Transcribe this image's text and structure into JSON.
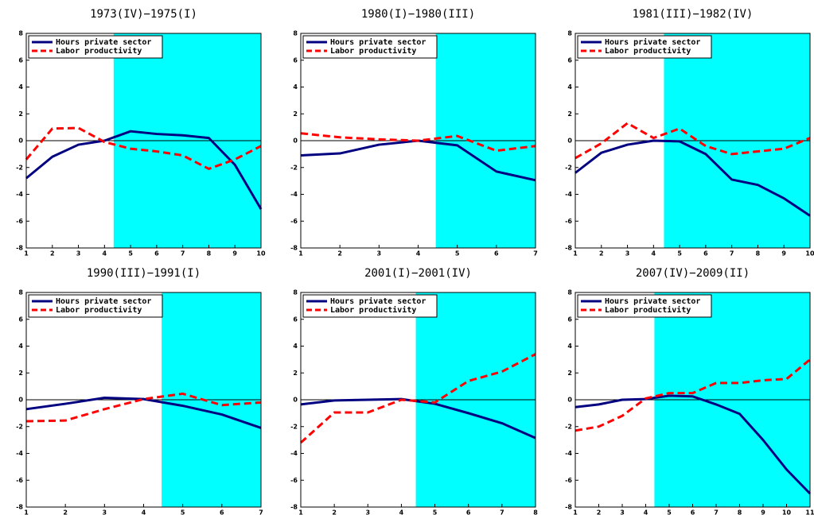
{
  "chart_data": [
    {
      "type": "line",
      "title": "1973(IV)−1975(I)",
      "x": [
        1,
        2,
        3,
        4,
        5,
        6,
        7,
        8,
        9,
        10
      ],
      "xlim": [
        1,
        10
      ],
      "xticks": [
        1,
        2,
        3,
        4,
        5,
        6,
        7,
        8,
        9,
        10
      ],
      "ylim": [
        -8,
        8
      ],
      "yticks": [
        -8,
        -6,
        -4,
        -2,
        0,
        2,
        4,
        6,
        8
      ],
      "shade": {
        "from": 4.35,
        "to": 10,
        "color": "#00ffff"
      },
      "legend": "upper-left",
      "series": [
        {
          "name": "Hours private sector",
          "color": "#000080",
          "dashed": false,
          "values": [
            -2.8,
            -1.2,
            -0.3,
            0,
            0.7,
            0.5,
            0.4,
            0.2,
            -1.8,
            -5.1
          ]
        },
        {
          "name": "Labor productivity",
          "color": "#ff0000",
          "dashed": true,
          "values": [
            -1.4,
            0.9,
            0.95,
            -0.1,
            -0.6,
            -0.8,
            -1.1,
            -2.1,
            -1.4,
            -0.4
          ]
        }
      ]
    },
    {
      "type": "line",
      "title": "1980(I)−1980(III)",
      "x": [
        1,
        2,
        3,
        4,
        5,
        6,
        7
      ],
      "xlim": [
        1,
        7
      ],
      "xticks": [
        1,
        2,
        3,
        4,
        5,
        6,
        7
      ],
      "ylim": [
        -8,
        8
      ],
      "yticks": [
        -8,
        -6,
        -4,
        -2,
        0,
        2,
        4,
        6,
        8
      ],
      "shade": {
        "from": 4.45,
        "to": 7,
        "color": "#00ffff"
      },
      "legend": "upper-left",
      "series": [
        {
          "name": "Hours private sector",
          "color": "#000080",
          "dashed": false,
          "values": [
            -1.1,
            -0.95,
            -0.3,
            0,
            -0.35,
            -2.3,
            -2.95
          ]
        },
        {
          "name": "Labor productivity",
          "color": "#ff0000",
          "dashed": true,
          "values": [
            0.55,
            0.25,
            0.1,
            0,
            0.35,
            -0.75,
            -0.4
          ]
        }
      ]
    },
    {
      "type": "line",
      "title": "1981(III)−1982(IV)",
      "x": [
        1,
        2,
        3,
        4,
        5,
        6,
        7,
        8,
        9,
        10
      ],
      "xlim": [
        1,
        10
      ],
      "xticks": [
        1,
        2,
        3,
        4,
        5,
        6,
        7,
        8,
        9,
        10
      ],
      "ylim": [
        -8,
        8
      ],
      "yticks": [
        -8,
        -6,
        -4,
        -2,
        0,
        2,
        4,
        6,
        8
      ],
      "shade": {
        "from": 4.4,
        "to": 10,
        "color": "#00ffff"
      },
      "legend": "upper-left",
      "series": [
        {
          "name": "Hours private sector",
          "color": "#000080",
          "dashed": false,
          "values": [
            -2.4,
            -0.9,
            -0.3,
            0,
            -0.05,
            -1.0,
            -2.9,
            -3.3,
            -4.3,
            -5.6
          ]
        },
        {
          "name": "Labor productivity",
          "color": "#ff0000",
          "dashed": true,
          "values": [
            -1.3,
            -0.2,
            1.3,
            0.2,
            0.9,
            -0.4,
            -1.0,
            -0.8,
            -0.6,
            0.2
          ]
        }
      ]
    },
    {
      "type": "line",
      "title": "1990(III)−1991(I)",
      "x": [
        1,
        2,
        3,
        4,
        5,
        6,
        7
      ],
      "xlim": [
        1,
        7
      ],
      "xticks": [
        1,
        2,
        3,
        4,
        5,
        6,
        7
      ],
      "ylim": [
        -8,
        8
      ],
      "yticks": [
        -8,
        -6,
        -4,
        -2,
        0,
        2,
        4,
        6,
        8
      ],
      "shade": {
        "from": 4.46,
        "to": 7,
        "color": "#00ffff"
      },
      "legend": "upper-left",
      "series": [
        {
          "name": "Hours private sector",
          "color": "#000080",
          "dashed": false,
          "values": [
            -0.7,
            -0.3,
            0.15,
            0.05,
            -0.45,
            -1.1,
            -2.1
          ]
        },
        {
          "name": "Labor productivity",
          "color": "#ff0000",
          "dashed": true,
          "values": [
            -1.6,
            -1.55,
            -0.7,
            0.05,
            0.45,
            -0.4,
            -0.2
          ]
        }
      ]
    },
    {
      "type": "line",
      "title": "2001(I)−2001(IV)",
      "x": [
        1,
        2,
        3,
        4,
        5,
        6,
        7,
        8
      ],
      "xlim": [
        1,
        8
      ],
      "xticks": [
        1,
        2,
        3,
        4,
        5,
        6,
        7,
        8
      ],
      "ylim": [
        -8,
        8
      ],
      "yticks": [
        -8,
        -6,
        -4,
        -2,
        0,
        2,
        4,
        6,
        8
      ],
      "shade": {
        "from": 4.43,
        "to": 8,
        "color": "#00ffff"
      },
      "legend": "upper-left",
      "series": [
        {
          "name": "Hours private sector",
          "color": "#000080",
          "dashed": false,
          "values": [
            -0.35,
            -0.05,
            0,
            0.05,
            -0.3,
            -1.0,
            -1.75,
            -2.85
          ]
        },
        {
          "name": "Labor productivity",
          "color": "#ff0000",
          "dashed": true,
          "values": [
            -3.2,
            -0.95,
            -0.95,
            0,
            -0.2,
            1.4,
            2.1,
            3.4
          ]
        }
      ]
    },
    {
      "type": "line",
      "title": "2007(IV)−2009(II)",
      "x": [
        1,
        2,
        3,
        4,
        5,
        6,
        7,
        8,
        9,
        10,
        11
      ],
      "xlim": [
        1,
        11
      ],
      "xticks": [
        1,
        2,
        3,
        4,
        5,
        6,
        7,
        8,
        9,
        10,
        11
      ],
      "ylim": [
        -8,
        8
      ],
      "yticks": [
        -8,
        -6,
        -4,
        -2,
        0,
        2,
        4,
        6,
        8
      ],
      "shade": {
        "from": 4.37,
        "to": 11,
        "color": "#00ffff"
      },
      "legend": "upper-left",
      "series": [
        {
          "name": "Hours private sector",
          "color": "#000080",
          "dashed": false,
          "values": [
            -0.55,
            -0.35,
            0,
            0.05,
            0.3,
            0.25,
            -0.35,
            -1.05,
            -3.0,
            -5.2,
            -7.0
          ]
        },
        {
          "name": "Labor productivity",
          "color": "#ff0000",
          "dashed": true,
          "values": [
            -2.3,
            -2.0,
            -1.2,
            0.1,
            0.5,
            0.5,
            1.25,
            1.25,
            1.45,
            1.55,
            3.0
          ]
        }
      ]
    }
  ]
}
